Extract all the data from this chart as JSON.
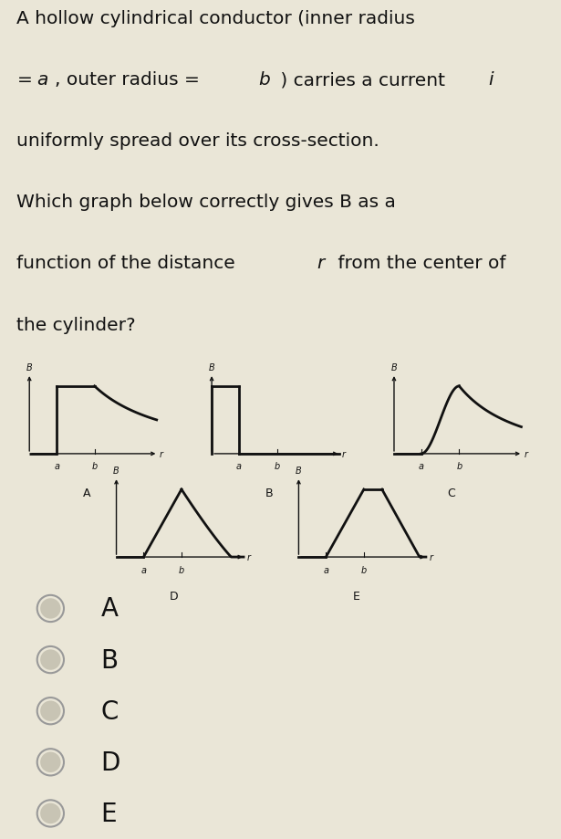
{
  "bg_color": "#eae6d7",
  "panel_bg": "#ffffff",
  "text_color": "#1a1a1a",
  "choices": [
    "A",
    "B",
    "C",
    "D",
    "E"
  ],
  "line_color": "#111111",
  "line_width": 2.0,
  "axis_lw": 1.0,
  "title_fontsize": 14.5,
  "choice_fontsize": 20
}
